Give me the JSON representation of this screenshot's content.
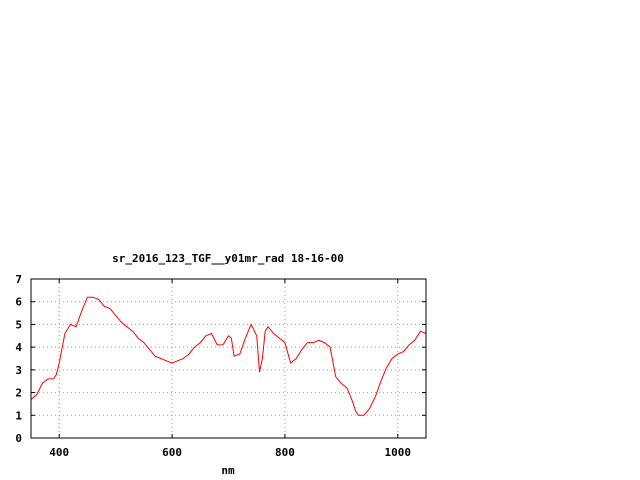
{
  "chart_data": {
    "type": "line",
    "title": "sr_2016_123_TGF__y01mr_rad 18-16-00",
    "xlabel": "nm",
    "ylabel": "",
    "xlim": [
      350,
      1050
    ],
    "ylim": [
      0,
      7
    ],
    "xticks": [
      400,
      600,
      800,
      1000
    ],
    "yticks": [
      0,
      1,
      2,
      3,
      4,
      5,
      6,
      7
    ],
    "grid": true,
    "line_color": "#ff0000",
    "series": [
      {
        "x": [
          350,
          360,
          370,
          380,
          390,
          395,
          400,
          410,
          420,
          430,
          440,
          450,
          460,
          470,
          480,
          490,
          500,
          510,
          520,
          530,
          540,
          550,
          560,
          570,
          580,
          590,
          600,
          610,
          620,
          630,
          640,
          650,
          660,
          670,
          680,
          690,
          700,
          705,
          710,
          720,
          730,
          740,
          750,
          755,
          760,
          765,
          770,
          780,
          790,
          800,
          810,
          820,
          830,
          840,
          850,
          860,
          870,
          880,
          890,
          900,
          910,
          920,
          925,
          930,
          935,
          940,
          950,
          960,
          970,
          980,
          990,
          1000,
          1010,
          1020,
          1030,
          1040,
          1050
        ],
        "y": [
          1.7,
          1.9,
          2.4,
          2.6,
          2.6,
          2.8,
          3.3,
          4.6,
          5.0,
          4.9,
          5.6,
          6.2,
          6.2,
          6.1,
          5.8,
          5.7,
          5.4,
          5.1,
          4.9,
          4.7,
          4.4,
          4.2,
          3.9,
          3.6,
          3.5,
          3.4,
          3.3,
          3.4,
          3.5,
          3.7,
          4.0,
          4.2,
          4.5,
          4.6,
          4.1,
          4.1,
          4.5,
          4.4,
          3.6,
          3.7,
          4.4,
          5.0,
          4.5,
          2.9,
          3.5,
          4.7,
          4.9,
          4.6,
          4.4,
          4.2,
          3.3,
          3.5,
          3.9,
          4.2,
          4.2,
          4.3,
          4.2,
          4.0,
          2.7,
          2.4,
          2.2,
          1.6,
          1.2,
          1.0,
          1.0,
          1.0,
          1.3,
          1.8,
          2.5,
          3.1,
          3.5,
          3.7,
          3.8,
          4.1,
          4.3,
          4.7,
          4.6
        ]
      }
    ]
  }
}
